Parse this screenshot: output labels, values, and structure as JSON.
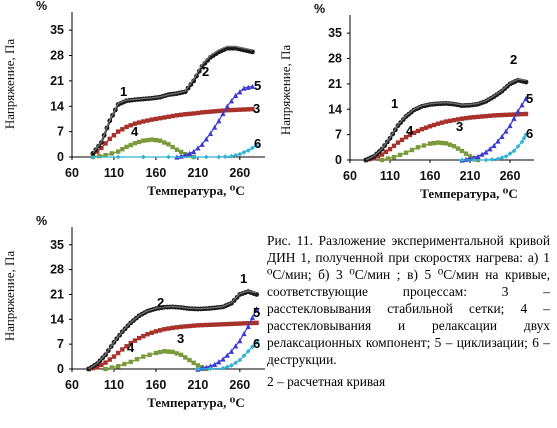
{
  "caption": {
    "main": "Рис. 11. Разложение экспериментальной кривой ДИН 1, полученной при скоростях нагрева: а) 1 ⁰С/мин; б) 3 ⁰С/мин ; в) 5 ⁰С/мин на кривые, соответствующие процессам: 3 –расстекловывания стабильной сетки; 4 – расстекловывания и релаксации двух релаксационных компонент; 5 – циклизации; 6 – деструкции.",
    "last": "2 – расчетная кривая"
  },
  "colors": {
    "exp": "#1a1a1a",
    "calc": "#6e6e6e",
    "c3": "#a8322b",
    "c4": "#7a9a3c",
    "c5": "#3a3ad0",
    "c6": "#2fb4d6"
  },
  "chart_data": [
    {
      "type": "line",
      "panel": "а",
      "xlabel": "Температура, ⁰С",
      "ylabel": "Напряжение, Па",
      "y_unit_mark": "%",
      "xlim": [
        60,
        290
      ],
      "ylim": [
        0,
        40
      ],
      "xticks": [
        "60",
        "110",
        "160",
        "210",
        "260"
      ],
      "yticks": [
        "0",
        "7",
        "14",
        "21",
        "28",
        "35"
      ],
      "series": [
        {
          "name": "1",
          "x": [
            85,
            95,
            105,
            115,
            125,
            135,
            145,
            155,
            165,
            175,
            185,
            195,
            205,
            215,
            225,
            235,
            245,
            255,
            265,
            275
          ],
          "y": [
            1,
            4,
            10,
            14.5,
            15.5,
            15.8,
            16,
            16.2,
            16.5,
            17.2,
            17.5,
            18,
            21,
            25,
            27.5,
            29,
            30,
            30,
            29.5,
            29
          ]
        },
        {
          "name": "2",
          "x": [
            85,
            95,
            105,
            115,
            125,
            135,
            145,
            155,
            165,
            175,
            185,
            195,
            205,
            215,
            225,
            235,
            245,
            255,
            265,
            275
          ],
          "y": [
            1.2,
            4.2,
            10.2,
            14.8,
            15.7,
            15.9,
            16.1,
            16.3,
            16.6,
            17.2,
            17.6,
            18.2,
            21.5,
            25.5,
            28,
            29.5,
            30.5,
            30.5,
            30,
            29.5
          ]
        },
        {
          "name": "3",
          "x": [
            85,
            95,
            105,
            115,
            125,
            135,
            145,
            155,
            165,
            175,
            185,
            195,
            205,
            215,
            225,
            235,
            245,
            255,
            265,
            275
          ],
          "y": [
            0.5,
            2.5,
            5,
            7,
            8.3,
            9.2,
            9.8,
            10.3,
            10.7,
            11.1,
            11.5,
            11.8,
            12,
            12.3,
            12.5,
            12.7,
            12.9,
            13,
            13.1,
            13.2
          ]
        },
        {
          "name": "4",
          "x": [
            85,
            100,
            115,
            125,
            135,
            145,
            155,
            165,
            175,
            185,
            195,
            205
          ],
          "y": [
            0,
            0.5,
            1.5,
            2.8,
            3.8,
            4.5,
            4.8,
            4.5,
            3.5,
            2,
            0.8,
            0
          ]
        },
        {
          "name": "5",
          "x": [
            185,
            195,
            205,
            215,
            225,
            235,
            245,
            255,
            265,
            275
          ],
          "y": [
            0,
            0.5,
            1.5,
            3.5,
            6.5,
            10,
            14,
            17,
            19,
            19.5
          ]
        },
        {
          "name": "6",
          "x": [
            85,
            145,
            205,
            235,
            250,
            260,
            270,
            280
          ],
          "y": [
            0,
            0,
            0,
            0,
            0.2,
            0.8,
            1.8,
            3.2
          ]
        }
      ]
    },
    {
      "type": "line",
      "panel": "б",
      "xlabel": "Температура, ⁰С",
      "ylabel": "Напряжение, Па",
      "y_unit_mark": "%",
      "xlim": [
        60,
        290
      ],
      "ylim": [
        0,
        40
      ],
      "xticks": [
        "60",
        "110",
        "160",
        "210",
        "260"
      ],
      "yticks": [
        "0",
        "7",
        "14",
        "21",
        "28",
        "35"
      ],
      "series": [
        {
          "name": "1",
          "x": [
            80,
            90,
            100,
            110,
            120,
            130,
            140,
            150,
            160,
            170,
            180,
            190,
            200,
            210,
            220,
            230,
            240,
            250,
            260,
            270,
            280
          ],
          "y": [
            0,
            1,
            3,
            6,
            9.5,
            12,
            13.8,
            14.8,
            15.3,
            15.5,
            15.6,
            15.4,
            15,
            15.1,
            15.4,
            16.2,
            17.5,
            19,
            21,
            22,
            21.5
          ]
        },
        {
          "name": "2",
          "x": [
            80,
            90,
            100,
            110,
            120,
            130,
            140,
            150,
            160,
            170,
            180,
            190,
            200,
            210,
            220,
            230,
            240,
            250,
            260,
            270,
            280
          ],
          "y": [
            0,
            1.1,
            3.1,
            6.2,
            9.7,
            12.2,
            14,
            15,
            15.5,
            15.7,
            15.8,
            15.6,
            15.2,
            15.3,
            15.6,
            16.4,
            17.7,
            19.2,
            21.2,
            22.3,
            22
          ]
        },
        {
          "name": "3",
          "x": [
            80,
            90,
            100,
            110,
            120,
            130,
            140,
            150,
            160,
            170,
            180,
            190,
            200,
            210,
            220,
            230,
            240,
            250,
            260,
            270,
            280
          ],
          "y": [
            0,
            0.5,
            1.5,
            3,
            4.8,
            6.3,
            7.5,
            8.5,
            9.3,
            10,
            10.6,
            11,
            11.4,
            11.7,
            11.9,
            12.1,
            12.3,
            12.4,
            12.5,
            12.6,
            12.7
          ]
        },
        {
          "name": "4",
          "x": [
            100,
            115,
            130,
            145,
            160,
            170,
            180,
            190,
            200,
            210,
            220
          ],
          "y": [
            0,
            0.8,
            2,
            3.5,
            4.5,
            4.8,
            4.6,
            3.8,
            2.5,
            1,
            0
          ]
        },
        {
          "name": "5",
          "x": [
            200,
            210,
            220,
            230,
            240,
            250,
            260,
            270,
            280
          ],
          "y": [
            0,
            0.4,
            1,
            2.2,
            4,
            6.5,
            9.5,
            13.5,
            17
          ]
        },
        {
          "name": "6",
          "x": [
            200,
            230,
            245,
            255,
            265,
            275,
            280
          ],
          "y": [
            0,
            0,
            0.3,
            1,
            2.5,
            5,
            7
          ]
        }
      ]
    },
    {
      "type": "line",
      "panel": "в",
      "xlabel": "Температура, ⁰С",
      "ylabel": "Напряжение, Па",
      "y_unit_mark": "%",
      "xlim": [
        60,
        290
      ],
      "ylim": [
        0,
        40
      ],
      "xticks": [
        "60",
        "110",
        "160",
        "210",
        "260"
      ],
      "yticks": [
        "0",
        "7",
        "14",
        "21",
        "28",
        "35"
      ],
      "series": [
        {
          "name": "1",
          "x": [
            80,
            90,
            100,
            110,
            120,
            130,
            140,
            150,
            160,
            170,
            180,
            190,
            200,
            210,
            220,
            230,
            240,
            250,
            260,
            270,
            280
          ],
          "y": [
            0,
            1.5,
            4,
            7.5,
            10.5,
            13,
            15,
            16.3,
            17,
            17.4,
            17.5,
            17.3,
            17,
            16.9,
            17,
            17.2,
            17.5,
            18.5,
            21,
            21.8,
            21
          ]
        },
        {
          "name": "2",
          "x": [
            80,
            90,
            100,
            110,
            120,
            130,
            140,
            150,
            160,
            170,
            180,
            190,
            200,
            210,
            220,
            230,
            240,
            250,
            260,
            270,
            280
          ],
          "y": [
            0,
            1.6,
            4.1,
            7.6,
            10.6,
            13.1,
            15.1,
            16.4,
            17.1,
            17.5,
            17.6,
            17.4,
            17.1,
            17,
            17.1,
            17.3,
            17.6,
            18.7,
            21.2,
            22,
            21.4
          ]
        },
        {
          "name": "3",
          "x": [
            80,
            90,
            100,
            110,
            120,
            130,
            140,
            150,
            160,
            170,
            180,
            190,
            200,
            210,
            220,
            230,
            240,
            250,
            260,
            270,
            280
          ],
          "y": [
            0,
            0.5,
            1.8,
            3.5,
            5.5,
            7.3,
            8.7,
            9.8,
            10.6,
            11.2,
            11.6,
            11.9,
            12.1,
            12.3,
            12.4,
            12.5,
            12.6,
            12.7,
            12.8,
            12.9,
            13
          ]
        },
        {
          "name": "4",
          "x": [
            100,
            115,
            130,
            145,
            160,
            170,
            180,
            190,
            200,
            210,
            220
          ],
          "y": [
            0,
            0.8,
            2,
            3.5,
            4.5,
            5,
            4.8,
            4,
            2.5,
            1,
            0
          ]
        },
        {
          "name": "5",
          "x": [
            210,
            220,
            230,
            240,
            250,
            260,
            270,
            280
          ],
          "y": [
            0,
            0.5,
            1.3,
            2.8,
            5,
            8,
            12,
            17
          ]
        },
        {
          "name": "6",
          "x": [
            210,
            240,
            250,
            260,
            270,
            280
          ],
          "y": [
            0,
            0.2,
            1,
            2.5,
            5,
            7.5
          ]
        }
      ]
    }
  ]
}
